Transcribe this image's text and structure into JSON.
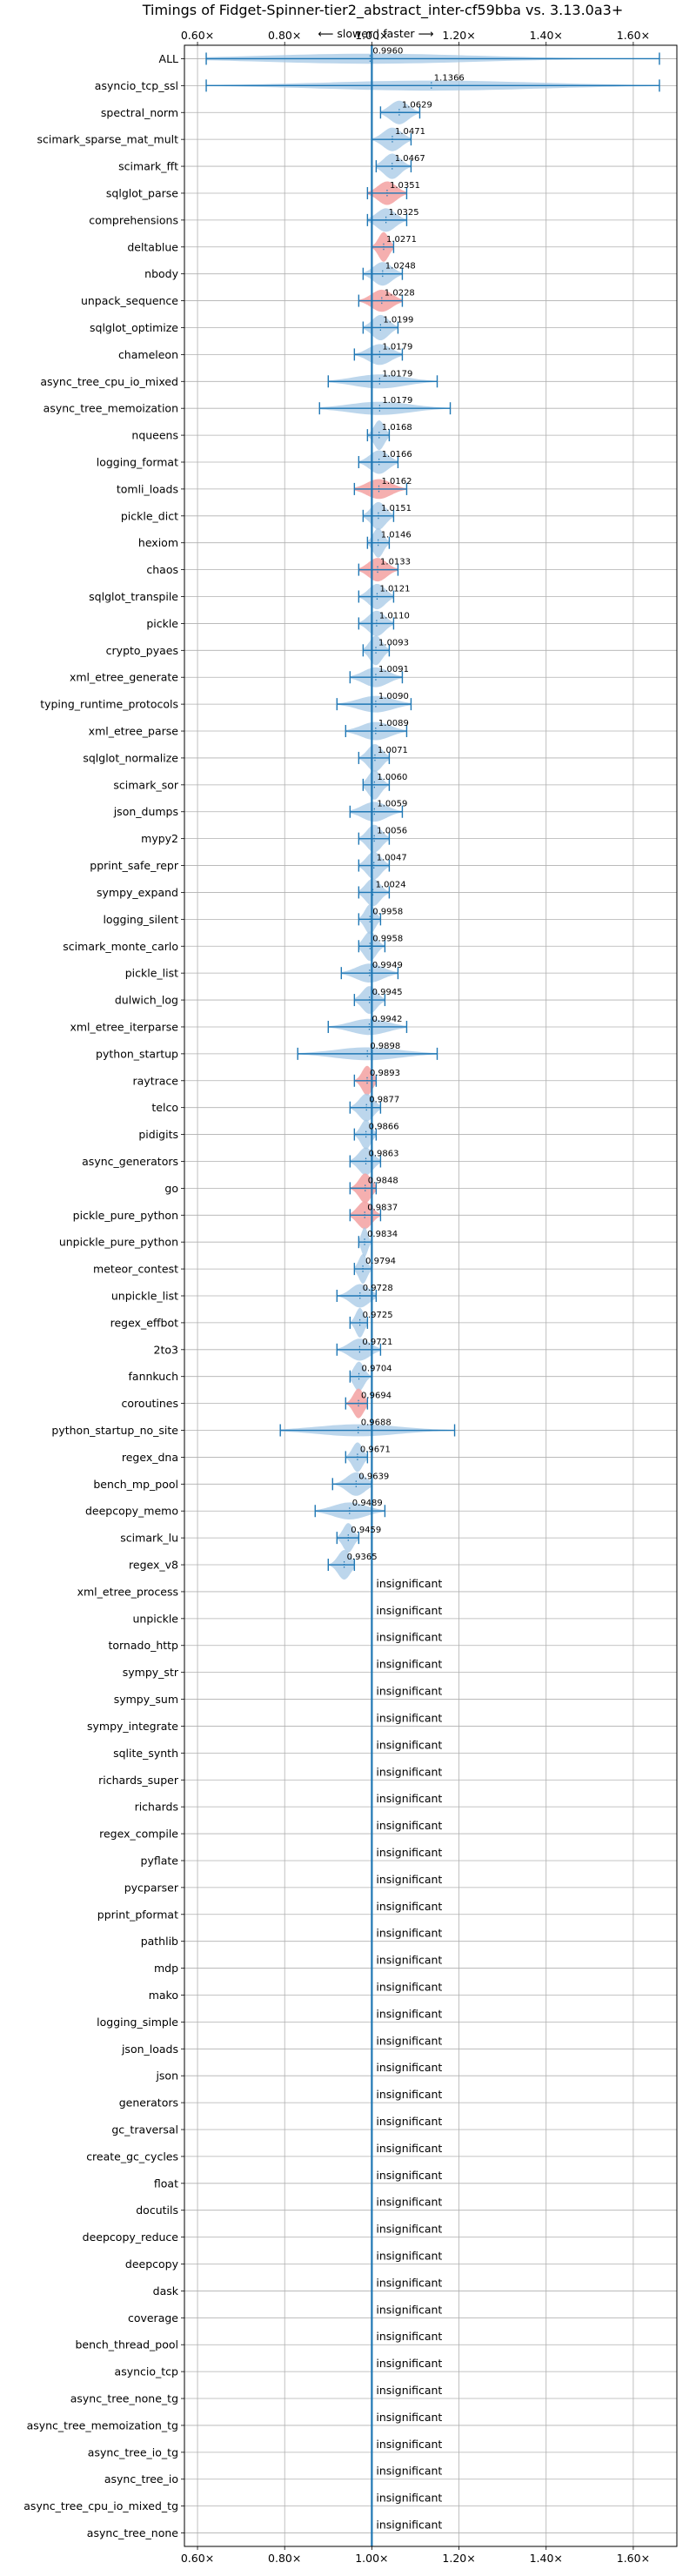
{
  "chart_data": {
    "type": "violin",
    "title": "Timings of Fidget-Spinner-tier2_abstract_inter-cf59bba vs. 3.13.0a3+",
    "direction_label": "⟵ slower | faster ⟶",
    "xlim": [
      0.57,
      1.7
    ],
    "x_ticks": [
      0.6,
      0.8,
      1.0,
      1.2,
      1.4,
      1.6
    ],
    "x_tick_labels": [
      "0.60×",
      "0.80×",
      "1.00×",
      "1.20×",
      "1.40×",
      "1.60×"
    ],
    "reference_line": 1.0,
    "grid": true,
    "insignificant_label": "insignificant",
    "colors": {
      "violin": "#a6c8e6",
      "highlight": "#f4a6a6",
      "line": "#1f77b4"
    },
    "benchmarks": [
      {
        "name": "ALL",
        "value": 0.996,
        "label": "0.9960",
        "min": 0.62,
        "max": 1.66,
        "hl": false
      },
      {
        "name": "asyncio_tcp_ssl",
        "value": 1.1366,
        "label": "1.1366",
        "min": 0.62,
        "max": 1.66,
        "hl": false
      },
      {
        "name": "spectral_norm",
        "value": 1.0629,
        "label": "1.0629",
        "min": 1.02,
        "max": 1.11,
        "hl": false
      },
      {
        "name": "scimark_sparse_mat_mult",
        "value": 1.0471,
        "label": "1.0471",
        "min": 1.0,
        "max": 1.09,
        "hl": false
      },
      {
        "name": "scimark_fft",
        "value": 1.0467,
        "label": "1.0467",
        "min": 1.01,
        "max": 1.09,
        "hl": false
      },
      {
        "name": "sqlglot_parse",
        "value": 1.0351,
        "label": "1.0351",
        "min": 0.99,
        "max": 1.08,
        "hl": true
      },
      {
        "name": "comprehensions",
        "value": 1.0325,
        "label": "1.0325",
        "min": 0.99,
        "max": 1.08,
        "hl": false
      },
      {
        "name": "deltablue",
        "value": 1.0271,
        "label": "1.0271",
        "min": 1.0,
        "max": 1.05,
        "hl": true
      },
      {
        "name": "nbody",
        "value": 1.0248,
        "label": "1.0248",
        "min": 0.98,
        "max": 1.07,
        "hl": false
      },
      {
        "name": "unpack_sequence",
        "value": 1.0228,
        "label": "1.0228",
        "min": 0.97,
        "max": 1.07,
        "hl": true
      },
      {
        "name": "sqlglot_optimize",
        "value": 1.0199,
        "label": "1.0199",
        "min": 0.98,
        "max": 1.06,
        "hl": false
      },
      {
        "name": "chameleon",
        "value": 1.0179,
        "label": "1.0179",
        "min": 0.96,
        "max": 1.07,
        "hl": false
      },
      {
        "name": "async_tree_cpu_io_mixed",
        "value": 1.0179,
        "label": "1.0179",
        "min": 0.9,
        "max": 1.15,
        "hl": false
      },
      {
        "name": "async_tree_memoization",
        "value": 1.0179,
        "label": "1.0179",
        "min": 0.88,
        "max": 1.18,
        "hl": false
      },
      {
        "name": "nqueens",
        "value": 1.0168,
        "label": "1.0168",
        "min": 0.99,
        "max": 1.04,
        "hl": false
      },
      {
        "name": "logging_format",
        "value": 1.0166,
        "label": "1.0166",
        "min": 0.97,
        "max": 1.06,
        "hl": false
      },
      {
        "name": "tomli_loads",
        "value": 1.0162,
        "label": "1.0162",
        "min": 0.96,
        "max": 1.08,
        "hl": true
      },
      {
        "name": "pickle_dict",
        "value": 1.0151,
        "label": "1.0151",
        "min": 0.98,
        "max": 1.05,
        "hl": false
      },
      {
        "name": "hexiom",
        "value": 1.0146,
        "label": "1.0146",
        "min": 0.99,
        "max": 1.04,
        "hl": false
      },
      {
        "name": "chaos",
        "value": 1.0133,
        "label": "1.0133",
        "min": 0.97,
        "max": 1.06,
        "hl": true
      },
      {
        "name": "sqlglot_transpile",
        "value": 1.0121,
        "label": "1.0121",
        "min": 0.97,
        "max": 1.05,
        "hl": false
      },
      {
        "name": "pickle",
        "value": 1.011,
        "label": "1.0110",
        "min": 0.97,
        "max": 1.05,
        "hl": false
      },
      {
        "name": "crypto_pyaes",
        "value": 1.0093,
        "label": "1.0093",
        "min": 0.98,
        "max": 1.04,
        "hl": false
      },
      {
        "name": "xml_etree_generate",
        "value": 1.0091,
        "label": "1.0091",
        "min": 0.95,
        "max": 1.07,
        "hl": false
      },
      {
        "name": "typing_runtime_protocols",
        "value": 1.009,
        "label": "1.0090",
        "min": 0.92,
        "max": 1.09,
        "hl": false
      },
      {
        "name": "xml_etree_parse",
        "value": 1.0089,
        "label": "1.0089",
        "min": 0.94,
        "max": 1.08,
        "hl": false
      },
      {
        "name": "sqlglot_normalize",
        "value": 1.0071,
        "label": "1.0071",
        "min": 0.97,
        "max": 1.04,
        "hl": false
      },
      {
        "name": "scimark_sor",
        "value": 1.006,
        "label": "1.0060",
        "min": 0.98,
        "max": 1.04,
        "hl": false
      },
      {
        "name": "json_dumps",
        "value": 1.0059,
        "label": "1.0059",
        "min": 0.95,
        "max": 1.07,
        "hl": false
      },
      {
        "name": "mypy2",
        "value": 1.0056,
        "label": "1.0056",
        "min": 0.97,
        "max": 1.04,
        "hl": false
      },
      {
        "name": "pprint_safe_repr",
        "value": 1.0047,
        "label": "1.0047",
        "min": 0.97,
        "max": 1.04,
        "hl": false
      },
      {
        "name": "sympy_expand",
        "value": 1.0024,
        "label": "1.0024",
        "min": 0.97,
        "max": 1.04,
        "hl": false
      },
      {
        "name": "logging_silent",
        "value": 0.9958,
        "label": "0.9958",
        "min": 0.97,
        "max": 1.02,
        "hl": false
      },
      {
        "name": "scimark_monte_carlo",
        "value": 0.9958,
        "label": "0.9958",
        "min": 0.97,
        "max": 1.03,
        "hl": false
      },
      {
        "name": "pickle_list",
        "value": 0.9949,
        "label": "0.9949",
        "min": 0.93,
        "max": 1.06,
        "hl": false
      },
      {
        "name": "dulwich_log",
        "value": 0.9945,
        "label": "0.9945",
        "min": 0.96,
        "max": 1.03,
        "hl": false
      },
      {
        "name": "xml_etree_iterparse",
        "value": 0.9942,
        "label": "0.9942",
        "min": 0.9,
        "max": 1.08,
        "hl": false
      },
      {
        "name": "python_startup",
        "value": 0.9898,
        "label": "0.9898",
        "min": 0.83,
        "max": 1.15,
        "hl": false
      },
      {
        "name": "raytrace",
        "value": 0.9893,
        "label": "0.9893",
        "min": 0.96,
        "max": 1.01,
        "hl": true
      },
      {
        "name": "telco",
        "value": 0.9877,
        "label": "0.9877",
        "min": 0.95,
        "max": 1.02,
        "hl": false
      },
      {
        "name": "pidigits",
        "value": 0.9866,
        "label": "0.9866",
        "min": 0.96,
        "max": 1.01,
        "hl": false
      },
      {
        "name": "async_generators",
        "value": 0.9863,
        "label": "0.9863",
        "min": 0.95,
        "max": 1.02,
        "hl": false
      },
      {
        "name": "go",
        "value": 0.9848,
        "label": "0.9848",
        "min": 0.95,
        "max": 1.01,
        "hl": true
      },
      {
        "name": "pickle_pure_python",
        "value": 0.9837,
        "label": "0.9837",
        "min": 0.95,
        "max": 1.02,
        "hl": true
      },
      {
        "name": "unpickle_pure_python",
        "value": 0.9834,
        "label": "0.9834",
        "min": 0.97,
        "max": 1.0,
        "hl": false
      },
      {
        "name": "meteor_contest",
        "value": 0.9794,
        "label": "0.9794",
        "min": 0.96,
        "max": 1.0,
        "hl": false
      },
      {
        "name": "unpickle_list",
        "value": 0.9728,
        "label": "0.9728",
        "min": 0.92,
        "max": 1.01,
        "hl": false
      },
      {
        "name": "regex_effbot",
        "value": 0.9725,
        "label": "0.9725",
        "min": 0.95,
        "max": 0.99,
        "hl": false
      },
      {
        "name": "2to3",
        "value": 0.9721,
        "label": "0.9721",
        "min": 0.92,
        "max": 1.02,
        "hl": false
      },
      {
        "name": "fannkuch",
        "value": 0.9704,
        "label": "0.9704",
        "min": 0.95,
        "max": 1.0,
        "hl": false
      },
      {
        "name": "coroutines",
        "value": 0.9694,
        "label": "0.9694",
        "min": 0.94,
        "max": 0.99,
        "hl": true
      },
      {
        "name": "python_startup_no_site",
        "value": 0.9688,
        "label": "0.9688",
        "min": 0.79,
        "max": 1.19,
        "hl": false
      },
      {
        "name": "regex_dna",
        "value": 0.9671,
        "label": "0.9671",
        "min": 0.94,
        "max": 0.99,
        "hl": false
      },
      {
        "name": "bench_mp_pool",
        "value": 0.9639,
        "label": "0.9639",
        "min": 0.91,
        "max": 1.0,
        "hl": false
      },
      {
        "name": "deepcopy_memo",
        "value": 0.9489,
        "label": "0.9489",
        "min": 0.87,
        "max": 1.03,
        "hl": false
      },
      {
        "name": "scimark_lu",
        "value": 0.9459,
        "label": "0.9459",
        "min": 0.92,
        "max": 0.97,
        "hl": false
      },
      {
        "name": "regex_v8",
        "value": 0.9365,
        "label": "0.9365",
        "min": 0.9,
        "max": 0.96,
        "hl": false
      },
      {
        "name": "xml_etree_process",
        "value": null,
        "label": "",
        "min": null,
        "max": null,
        "hl": false
      },
      {
        "name": "unpickle",
        "value": null,
        "label": "",
        "min": null,
        "max": null,
        "hl": false
      },
      {
        "name": "tornado_http",
        "value": null,
        "label": "",
        "min": null,
        "max": null,
        "hl": false
      },
      {
        "name": "sympy_str",
        "value": null,
        "label": "",
        "min": null,
        "max": null,
        "hl": false
      },
      {
        "name": "sympy_sum",
        "value": null,
        "label": "",
        "min": null,
        "max": null,
        "hl": false
      },
      {
        "name": "sympy_integrate",
        "value": null,
        "label": "",
        "min": null,
        "max": null,
        "hl": false
      },
      {
        "name": "sqlite_synth",
        "value": null,
        "label": "",
        "min": null,
        "max": null,
        "hl": false
      },
      {
        "name": "richards_super",
        "value": null,
        "label": "",
        "min": null,
        "max": null,
        "hl": false
      },
      {
        "name": "richards",
        "value": null,
        "label": "",
        "min": null,
        "max": null,
        "hl": false
      },
      {
        "name": "regex_compile",
        "value": null,
        "label": "",
        "min": null,
        "max": null,
        "hl": false
      },
      {
        "name": "pyflate",
        "value": null,
        "label": "",
        "min": null,
        "max": null,
        "hl": false
      },
      {
        "name": "pycparser",
        "value": null,
        "label": "",
        "min": null,
        "max": null,
        "hl": false
      },
      {
        "name": "pprint_pformat",
        "value": null,
        "label": "",
        "min": null,
        "max": null,
        "hl": false
      },
      {
        "name": "pathlib",
        "value": null,
        "label": "",
        "min": null,
        "max": null,
        "hl": false
      },
      {
        "name": "mdp",
        "value": null,
        "label": "",
        "min": null,
        "max": null,
        "hl": false
      },
      {
        "name": "mako",
        "value": null,
        "label": "",
        "min": null,
        "max": null,
        "hl": false
      },
      {
        "name": "logging_simple",
        "value": null,
        "label": "",
        "min": null,
        "max": null,
        "hl": false
      },
      {
        "name": "json_loads",
        "value": null,
        "label": "",
        "min": null,
        "max": null,
        "hl": false
      },
      {
        "name": "json",
        "value": null,
        "label": "",
        "min": null,
        "max": null,
        "hl": false
      },
      {
        "name": "generators",
        "value": null,
        "label": "",
        "min": null,
        "max": null,
        "hl": false
      },
      {
        "name": "gc_traversal",
        "value": null,
        "label": "",
        "min": null,
        "max": null,
        "hl": false
      },
      {
        "name": "create_gc_cycles",
        "value": null,
        "label": "",
        "min": null,
        "max": null,
        "hl": false
      },
      {
        "name": "float",
        "value": null,
        "label": "",
        "min": null,
        "max": null,
        "hl": false
      },
      {
        "name": "docutils",
        "value": null,
        "label": "",
        "min": null,
        "max": null,
        "hl": false
      },
      {
        "name": "deepcopy_reduce",
        "value": null,
        "label": "",
        "min": null,
        "max": null,
        "hl": false
      },
      {
        "name": "deepcopy",
        "value": null,
        "label": "",
        "min": null,
        "max": null,
        "hl": false
      },
      {
        "name": "dask",
        "value": null,
        "label": "",
        "min": null,
        "max": null,
        "hl": false
      },
      {
        "name": "coverage",
        "value": null,
        "label": "",
        "min": null,
        "max": null,
        "hl": false
      },
      {
        "name": "bench_thread_pool",
        "value": null,
        "label": "",
        "min": null,
        "max": null,
        "hl": false
      },
      {
        "name": "asyncio_tcp",
        "value": null,
        "label": "",
        "min": null,
        "max": null,
        "hl": false
      },
      {
        "name": "async_tree_none_tg",
        "value": null,
        "label": "",
        "min": null,
        "max": null,
        "hl": false
      },
      {
        "name": "async_tree_memoization_tg",
        "value": null,
        "label": "",
        "min": null,
        "max": null,
        "hl": false
      },
      {
        "name": "async_tree_io_tg",
        "value": null,
        "label": "",
        "min": null,
        "max": null,
        "hl": false
      },
      {
        "name": "async_tree_io",
        "value": null,
        "label": "",
        "min": null,
        "max": null,
        "hl": false
      },
      {
        "name": "async_tree_cpu_io_mixed_tg",
        "value": null,
        "label": "",
        "min": null,
        "max": null,
        "hl": false
      },
      {
        "name": "async_tree_none",
        "value": null,
        "label": "",
        "min": null,
        "max": null,
        "hl": false
      }
    ]
  }
}
